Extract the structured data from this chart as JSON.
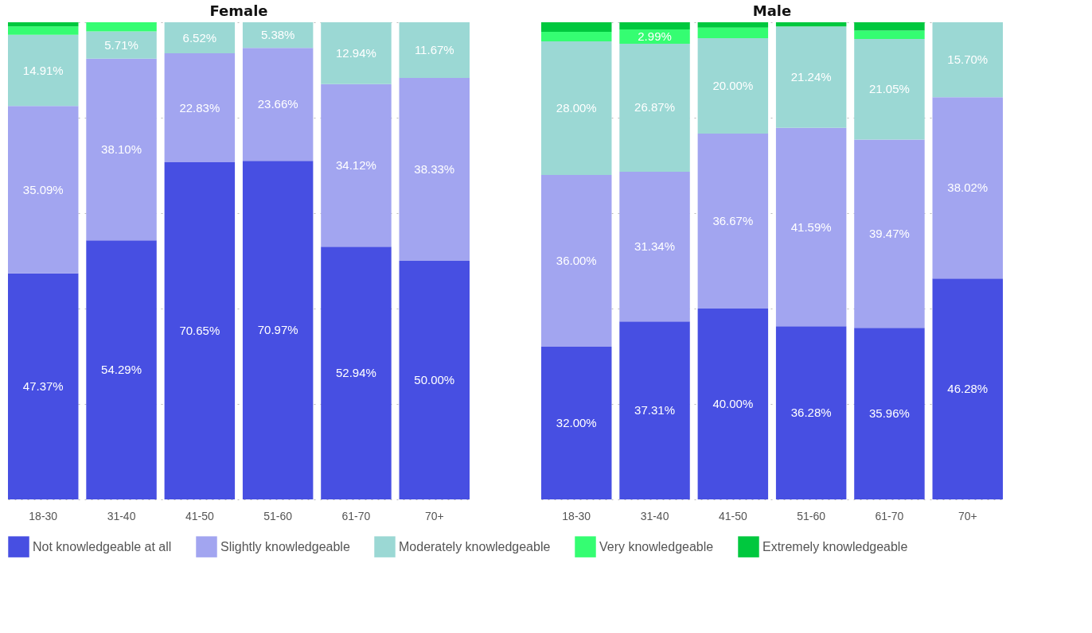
{
  "chart_data": [
    {
      "type": "bar",
      "title": "Female",
      "stacked": true,
      "categories": [
        "18-30",
        "31-40",
        "41-50",
        "51-60",
        "61-70",
        "70+"
      ],
      "ylim": [
        0,
        100
      ],
      "yticks": [
        {
          "value": 0,
          "label": null
        },
        {
          "value": 20,
          "label": null
        },
        {
          "value": 40,
          "label": null
        },
        {
          "value": 60,
          "label": null
        },
        {
          "value": 80,
          "label": null
        },
        {
          "value": 100,
          "label": null
        }
      ],
      "tick_labels": "x",
      "grid": "y",
      "legend": "bottom",
      "series": [
        {
          "name": "Not knowledgeable at all",
          "color": "#474fe2",
          "values": [
            47.37,
            54.29,
            70.65,
            70.97,
            52.94,
            50.0
          ],
          "value_labels": [
            "47.37%",
            "54.29%",
            "70.65%",
            "70.97%",
            "52.94%",
            "50.00%"
          ]
        },
        {
          "name": "Slightly knowledgeable",
          "color": "#a2a5f0",
          "values": [
            35.09,
            38.1,
            22.83,
            23.66,
            34.12,
            38.33
          ],
          "value_labels": [
            "35.09%",
            "38.10%",
            "22.83%",
            "23.66%",
            "34.12%",
            "38.33%"
          ]
        },
        {
          "name": "Moderately knowledgeable",
          "color": "#9bd8d4",
          "values": [
            14.91,
            5.71,
            6.52,
            5.38,
            12.94,
            11.67
          ],
          "value_labels": [
            "14.91%",
            "5.71%",
            "6.52%",
            "5.38%",
            "12.94%",
            "11.67%"
          ]
        },
        {
          "name": "Very knowledgeable",
          "color": "#35fd72",
          "values": [
            1.75,
            1.9,
            0,
            0,
            0,
            0
          ],
          "value_labels": [
            null,
            null,
            null,
            null,
            null,
            null
          ]
        },
        {
          "name": "Extremely knowledgeable",
          "color": "#00c83e",
          "values": [
            0.88,
            0,
            0,
            0,
            0,
            0
          ],
          "value_labels": [
            null,
            null,
            null,
            null,
            null,
            null
          ]
        }
      ]
    },
    {
      "type": "bar",
      "title": "Male",
      "stacked": true,
      "categories": [
        "18-30",
        "31-40",
        "41-50",
        "51-60",
        "61-70",
        "70+"
      ],
      "ylim": [
        0,
        100
      ],
      "yticks": [
        {
          "value": 0,
          "label": null
        },
        {
          "value": 20,
          "label": null
        },
        {
          "value": 40,
          "label": null
        },
        {
          "value": 60,
          "label": null
        },
        {
          "value": 80,
          "label": null
        },
        {
          "value": 100,
          "label": null
        }
      ],
      "tick_labels": "x",
      "grid": "y",
      "legend": "bottom",
      "series": [
        {
          "name": "Not knowledgeable at all",
          "color": "#474fe2",
          "values": [
            32.0,
            37.31,
            40.0,
            36.28,
            35.96,
            46.28
          ],
          "value_labels": [
            "32.00%",
            "37.31%",
            "40.00%",
            "36.28%",
            "35.96%",
            "46.28%"
          ]
        },
        {
          "name": "Slightly knowledgeable",
          "color": "#a2a5f0",
          "values": [
            36.0,
            31.34,
            36.67,
            41.59,
            39.47,
            38.02
          ],
          "value_labels": [
            "36.00%",
            "31.34%",
            "36.67%",
            "41.59%",
            "39.47%",
            "38.02%"
          ]
        },
        {
          "name": "Moderately knowledgeable",
          "color": "#9bd8d4",
          "values": [
            28.0,
            26.87,
            20.0,
            21.24,
            21.05,
            15.7
          ],
          "value_labels": [
            "28.00%",
            "26.87%",
            "20.00%",
            "21.24%",
            "21.05%",
            "15.70%"
          ]
        },
        {
          "name": "Very knowledgeable",
          "color": "#35fd72",
          "values": [
            2.0,
            2.99,
            2.22,
            0,
            1.76,
            0
          ],
          "value_labels": [
            null,
            "2.99%",
            null,
            null,
            null,
            null
          ]
        },
        {
          "name": "Extremely knowledgeable",
          "color": "#00c83e",
          "values": [
            2.0,
            1.49,
            1.11,
            0.89,
            1.76,
            0
          ],
          "value_labels": [
            null,
            null,
            null,
            null,
            null,
            null
          ]
        }
      ]
    }
  ]
}
